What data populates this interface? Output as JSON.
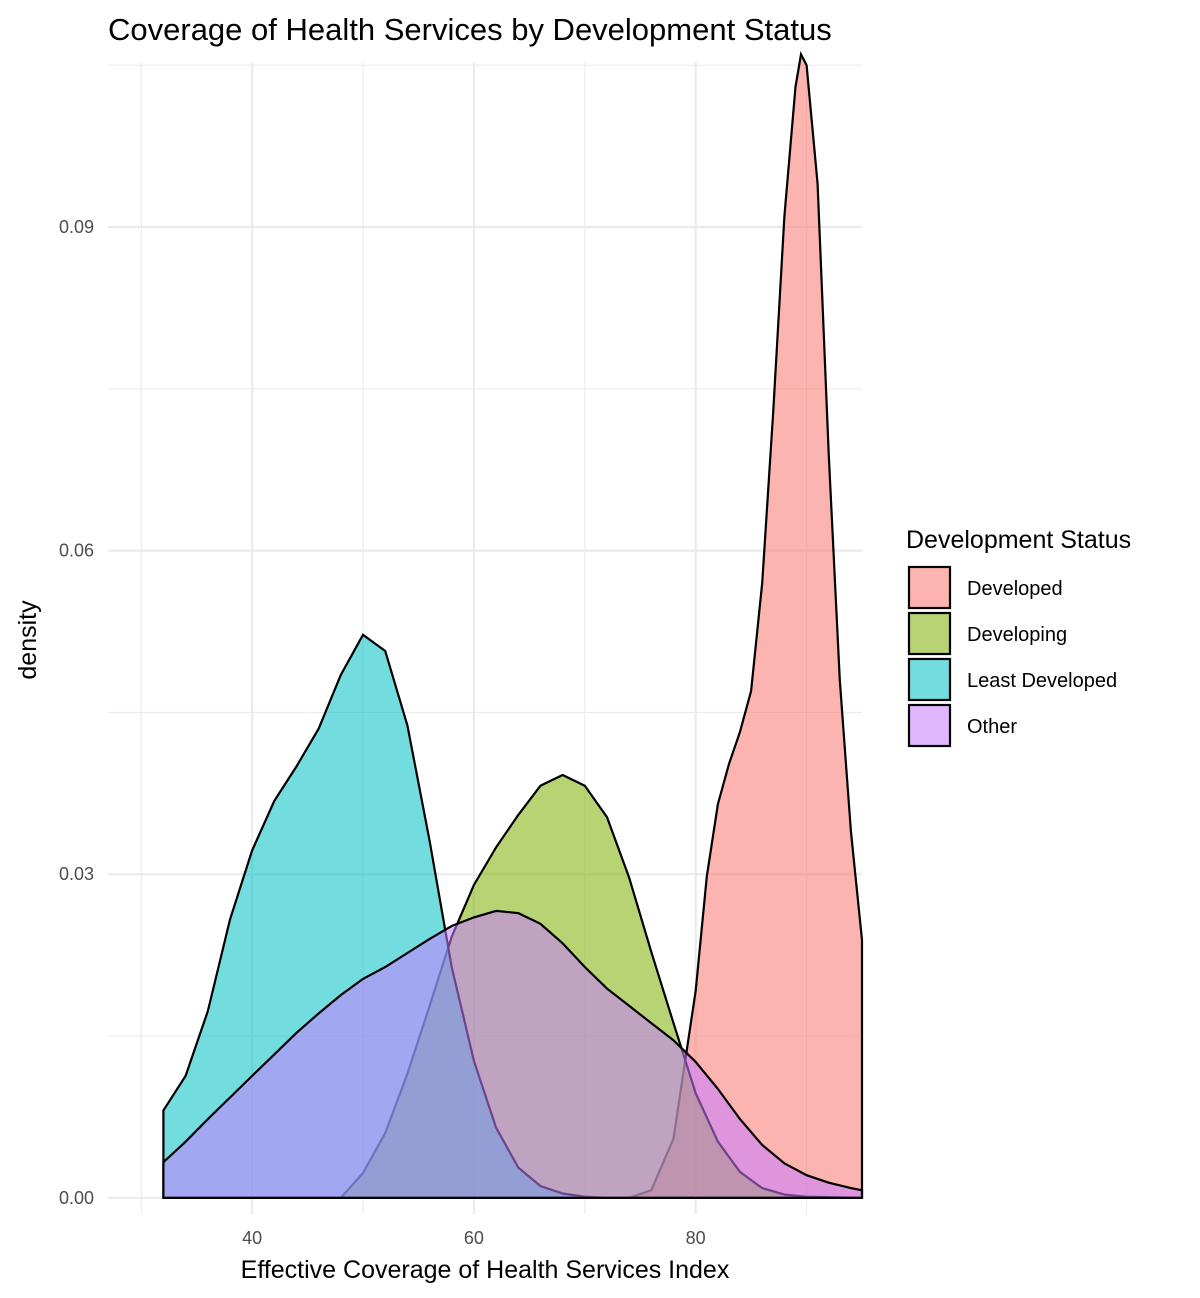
{
  "chart_data": {
    "type": "area",
    "subtype": "density",
    "title": "Coverage of Health Services by Development Status",
    "xlabel": "Effective Coverage of Health Services Index",
    "ylabel": "density",
    "xlim": [
      27,
      95
    ],
    "ylim": [
      -0.0015,
      0.1053
    ],
    "x_ticks": [
      40,
      60,
      80
    ],
    "x_tick_labels": [
      "40",
      "60",
      "80"
    ],
    "x_minor_ticks": [
      30,
      50,
      70,
      90
    ],
    "y_ticks": [
      0,
      0.03,
      0.06,
      0.09
    ],
    "y_tick_labels": [
      "0.00",
      "0.03",
      "0.06",
      "0.09"
    ],
    "y_minor_ticks": [
      0.015,
      0.045,
      0.075,
      0.105
    ],
    "grid": true,
    "legend": {
      "title": "Development Status",
      "placement": "right"
    },
    "series": [
      {
        "name": "Developed",
        "color": "#F8766D",
        "points": [
          [
            32,
            0.0
          ],
          [
            70,
            0.0
          ],
          [
            74,
            0.0
          ],
          [
            76,
            0.0007
          ],
          [
            78,
            0.0055
          ],
          [
            80,
            0.0192
          ],
          [
            81,
            0.0298
          ],
          [
            82,
            0.0365
          ],
          [
            83,
            0.0402
          ],
          [
            84,
            0.0432
          ],
          [
            85,
            0.047
          ],
          [
            86,
            0.057
          ],
          [
            87,
            0.073
          ],
          [
            88,
            0.091
          ],
          [
            89,
            0.103
          ],
          [
            89.5,
            0.106
          ],
          [
            90,
            0.105
          ],
          [
            91,
            0.094
          ],
          [
            92,
            0.069
          ],
          [
            93,
            0.048
          ],
          [
            94,
            0.034
          ],
          [
            95,
            0.0239
          ]
        ]
      },
      {
        "name": "Developing",
        "color": "#7CAE00",
        "points": [
          [
            32,
            0.0
          ],
          [
            48,
            0.0
          ],
          [
            50,
            0.0023
          ],
          [
            52,
            0.006
          ],
          [
            54,
            0.0115
          ],
          [
            56,
            0.0178
          ],
          [
            58,
            0.0242
          ],
          [
            60,
            0.029
          ],
          [
            62,
            0.0325
          ],
          [
            64,
            0.0355
          ],
          [
            66,
            0.0382
          ],
          [
            68,
            0.0392
          ],
          [
            70,
            0.0382
          ],
          [
            72,
            0.0353
          ],
          [
            74,
            0.0297
          ],
          [
            76,
            0.0228
          ],
          [
            78,
            0.0162
          ],
          [
            80,
            0.0097
          ],
          [
            82,
            0.0052
          ],
          [
            84,
            0.0024
          ],
          [
            86,
            0.0009
          ],
          [
            88,
            0.0003
          ],
          [
            90,
            0.0001
          ],
          [
            95,
            0.0
          ]
        ]
      },
      {
        "name": "Least Developed",
        "color": "#00BFC4",
        "points": [
          [
            32,
            0.0081
          ],
          [
            34,
            0.0113
          ],
          [
            36,
            0.0173
          ],
          [
            38,
            0.0258
          ],
          [
            40,
            0.0322
          ],
          [
            42,
            0.0368
          ],
          [
            44,
            0.04
          ],
          [
            46,
            0.0435
          ],
          [
            48,
            0.0485
          ],
          [
            50,
            0.0522
          ],
          [
            52,
            0.0507
          ],
          [
            54,
            0.0438
          ],
          [
            56,
            0.0331
          ],
          [
            58,
            0.0214
          ],
          [
            60,
            0.0127
          ],
          [
            62,
            0.0065
          ],
          [
            64,
            0.0028
          ],
          [
            66,
            0.0011
          ],
          [
            68,
            0.0004
          ],
          [
            70,
            0.0001
          ],
          [
            72,
            0.0
          ],
          [
            95,
            0.0
          ]
        ]
      },
      {
        "name": "Other",
        "color": "#C77CFF",
        "points": [
          [
            32,
            0.0033
          ],
          [
            34,
            0.0052
          ],
          [
            36,
            0.0073
          ],
          [
            38,
            0.0093
          ],
          [
            40,
            0.0113
          ],
          [
            42,
            0.0133
          ],
          [
            44,
            0.0153
          ],
          [
            46,
            0.0171
          ],
          [
            48,
            0.0188
          ],
          [
            50,
            0.0203
          ],
          [
            52,
            0.0214
          ],
          [
            54,
            0.0227
          ],
          [
            56,
            0.024
          ],
          [
            58,
            0.0252
          ],
          [
            60,
            0.026
          ],
          [
            62,
            0.0266
          ],
          [
            64,
            0.0264
          ],
          [
            66,
            0.0254
          ],
          [
            68,
            0.0236
          ],
          [
            70,
            0.0214
          ],
          [
            72,
            0.0194
          ],
          [
            74,
            0.0178
          ],
          [
            76,
            0.0162
          ],
          [
            78,
            0.0146
          ],
          [
            80,
            0.0126
          ],
          [
            82,
            0.0101
          ],
          [
            84,
            0.0073
          ],
          [
            86,
            0.0049
          ],
          [
            88,
            0.0032
          ],
          [
            90,
            0.0021
          ],
          [
            92,
            0.0014
          ],
          [
            94,
            0.0009
          ],
          [
            95,
            0.0007
          ]
        ]
      }
    ]
  }
}
